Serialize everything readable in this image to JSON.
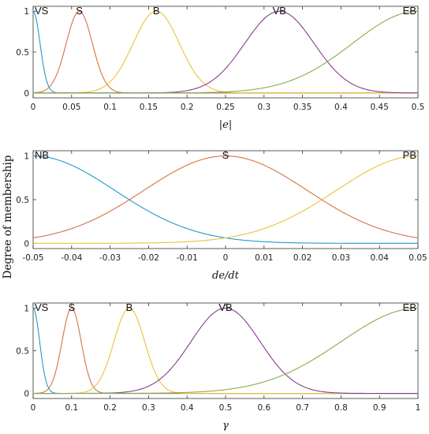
{
  "figure": {
    "ylabel": "Degree of membership"
  },
  "colors": {
    "blue": "#1f9bc9",
    "orange": "#d3753f",
    "yellow": "#ecc23a",
    "purple": "#8a3d90",
    "green": "#86ad4d",
    "axis": "#333333"
  },
  "chart_data": [
    {
      "type": "line",
      "xlabel": "|e|",
      "ylabel": "",
      "xlim": [
        0,
        0.5
      ],
      "ylim": [
        0,
        1
      ],
      "xticks": [
        0,
        0.05,
        0.1,
        0.15,
        0.2,
        0.25,
        0.3,
        0.35,
        0.4,
        0.45,
        0.5
      ],
      "xtick_labels": [
        "0",
        "0.05",
        "0.1",
        "0.15",
        "0.2",
        "0.25",
        "0.3",
        "0.35",
        "0.4",
        "0.45",
        "0.5"
      ],
      "yticks": [
        0,
        0.5,
        1
      ],
      "ytick_labels": [
        "0",
        "0.5",
        "1"
      ],
      "membership_function": "gaussian",
      "series": [
        {
          "name": "VS",
          "center": 0,
          "sigma": 0.009,
          "color": "#1f9bc9"
        },
        {
          "name": "S",
          "center": 0.06,
          "sigma": 0.017,
          "color": "#d3753f"
        },
        {
          "name": "B",
          "center": 0.16,
          "sigma": 0.03,
          "color": "#ecc23a"
        },
        {
          "name": "VB",
          "center": 0.32,
          "sigma": 0.045,
          "color": "#8a3d90"
        },
        {
          "name": "EB",
          "center": 0.5,
          "sigma": 0.085,
          "color": "#86ad4d"
        }
      ]
    },
    {
      "type": "line",
      "xlabel": "de/dt",
      "ylabel": "",
      "xlim": [
        -0.05,
        0.05
      ],
      "ylim": [
        0,
        1
      ],
      "xticks": [
        -0.05,
        -0.04,
        -0.03,
        -0.02,
        -0.01,
        0,
        0.01,
        0.02,
        0.03,
        0.04,
        0.05
      ],
      "xtick_labels": [
        "-0.05",
        "-0.04",
        "-0.03",
        "-0.02",
        "-0.01",
        "0",
        "0.01",
        "0.02",
        "0.03",
        "0.04",
        "0.05"
      ],
      "yticks": [
        0,
        0.5,
        1
      ],
      "ytick_labels": [
        "0",
        "0.5",
        "1"
      ],
      "membership_function": "gaussian",
      "series": [
        {
          "name": "NB",
          "center": -0.05,
          "sigma": 0.0212,
          "color": "#1f9bc9"
        },
        {
          "name": "S",
          "center": 0,
          "sigma": 0.0212,
          "color": "#d3753f"
        },
        {
          "name": "PB",
          "center": 0.05,
          "sigma": 0.0212,
          "color": "#ecc23a"
        }
      ]
    },
    {
      "type": "line",
      "xlabel": "γ",
      "ylabel": "",
      "xlim": [
        0,
        1
      ],
      "ylim": [
        0,
        1
      ],
      "xticks": [
        0,
        0.1,
        0.2,
        0.3,
        0.4,
        0.5,
        0.6,
        0.7,
        0.8,
        0.9,
        1
      ],
      "xtick_labels": [
        "0",
        "0.1",
        "0.2",
        "0.3",
        "0.4",
        "0.5",
        "0.6",
        "0.7",
        "0.8",
        "0.9",
        "1"
      ],
      "yticks": [
        0,
        0.5,
        1
      ],
      "ytick_labels": [
        "0",
        "0.5",
        "1"
      ],
      "membership_function": "gaussian",
      "series": [
        {
          "name": "VS",
          "center": 0,
          "sigma": 0.017,
          "color": "#1f9bc9"
        },
        {
          "name": "S",
          "center": 0.1,
          "sigma": 0.025,
          "color": "#d3753f"
        },
        {
          "name": "B",
          "center": 0.25,
          "sigma": 0.04,
          "color": "#ecc23a"
        },
        {
          "name": "VB",
          "center": 0.5,
          "sigma": 0.09,
          "color": "#8a3d90"
        },
        {
          "name": "EB",
          "center": 1,
          "sigma": 0.2,
          "color": "#86ad4d"
        }
      ]
    }
  ]
}
